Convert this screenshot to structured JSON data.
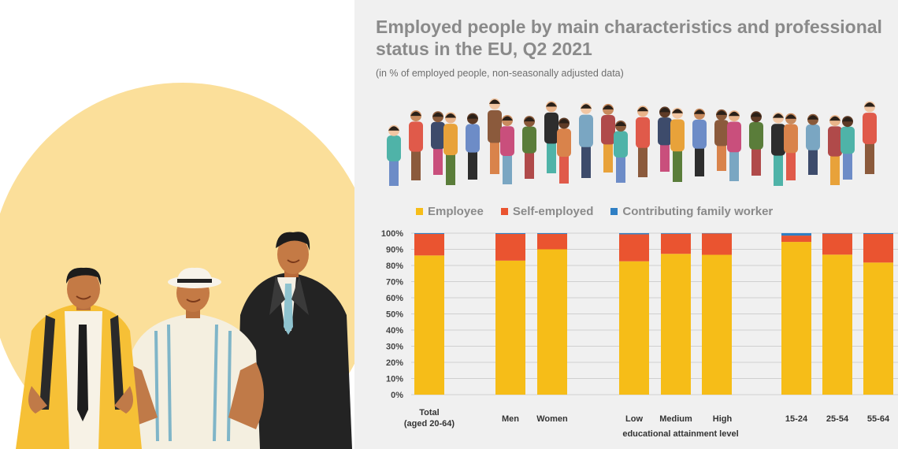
{
  "chart_data": {
    "type": "bar",
    "stacked": true,
    "title": "Employed people by main characteristics and professional status in the EU, Q2 2021",
    "subtitle": "(in % of employed people, non-seasonally adjusted data)",
    "categories": [
      "Total (aged 20-64)",
      "Men",
      "Women",
      "Low",
      "Medium",
      "High",
      "15-24",
      "25-54",
      "55-64"
    ],
    "category_labels": {
      "total_line1": "Total",
      "total_line2": "(aged 20-64)",
      "men": "Men",
      "women": "Women",
      "low": "Low",
      "medium": "Medium",
      "high": "High",
      "education_group": "educational  attainment level",
      "age1": "15-24",
      "age2": "25-54",
      "age3": "55-64"
    },
    "series": [
      {
        "name": "Employee",
        "values": [
          86.2,
          83.0,
          90.0,
          82.6,
          87.2,
          86.6,
          94.6,
          86.7,
          81.8
        ]
      },
      {
        "name": "Self-employed",
        "values": [
          13.3,
          16.5,
          9.5,
          16.7,
          12.4,
          13.2,
          3.9,
          13.0,
          17.7
        ]
      },
      {
        "name": "Contributing family worker",
        "values": [
          0.5,
          0.5,
          0.5,
          0.7,
          0.4,
          0.2,
          1.5,
          0.3,
          0.5
        ]
      }
    ],
    "ylim": [
      0,
      100
    ],
    "yticks": [
      "0%",
      "10%",
      "20%",
      "30%",
      "40%",
      "50%",
      "60%",
      "70%",
      "80%",
      "90%",
      "100%"
    ],
    "colors": {
      "Employee": "#f6bd18",
      "Self-employed": "#ea5430",
      "Contributing family worker": "#2f7fc4"
    },
    "grid": true,
    "legend": "top"
  },
  "illustration": {
    "left_icon": "three-men-illustration",
    "crowd_icon": "crowd-of-workers-illustration",
    "colors": {
      "circle": "#fbdf9a",
      "panel": "#f0f0f0"
    }
  }
}
